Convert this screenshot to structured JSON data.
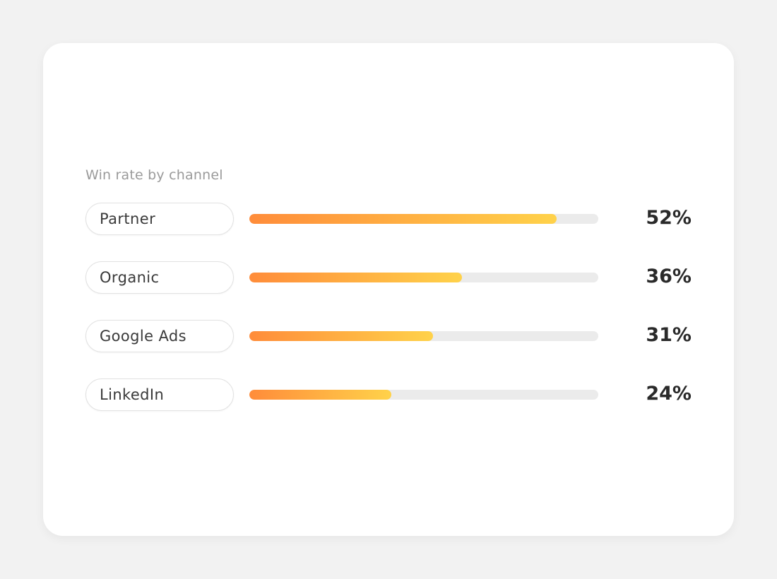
{
  "chart_data": {
    "type": "bar",
    "title": "Win rate by channel",
    "orientation": "horizontal",
    "categories": [
      "Partner",
      "Organic",
      "Google Ads",
      "LinkedIn"
    ],
    "values": [
      52,
      36,
      31,
      24
    ],
    "value_labels": [
      "52%",
      "36%",
      "31%",
      "24%"
    ],
    "unit": "%",
    "xlim": [
      0,
      59
    ]
  },
  "colors": {
    "bar_start": "#ff8c3a",
    "bar_end": "#ffd24a",
    "track": "#ebebeb"
  }
}
